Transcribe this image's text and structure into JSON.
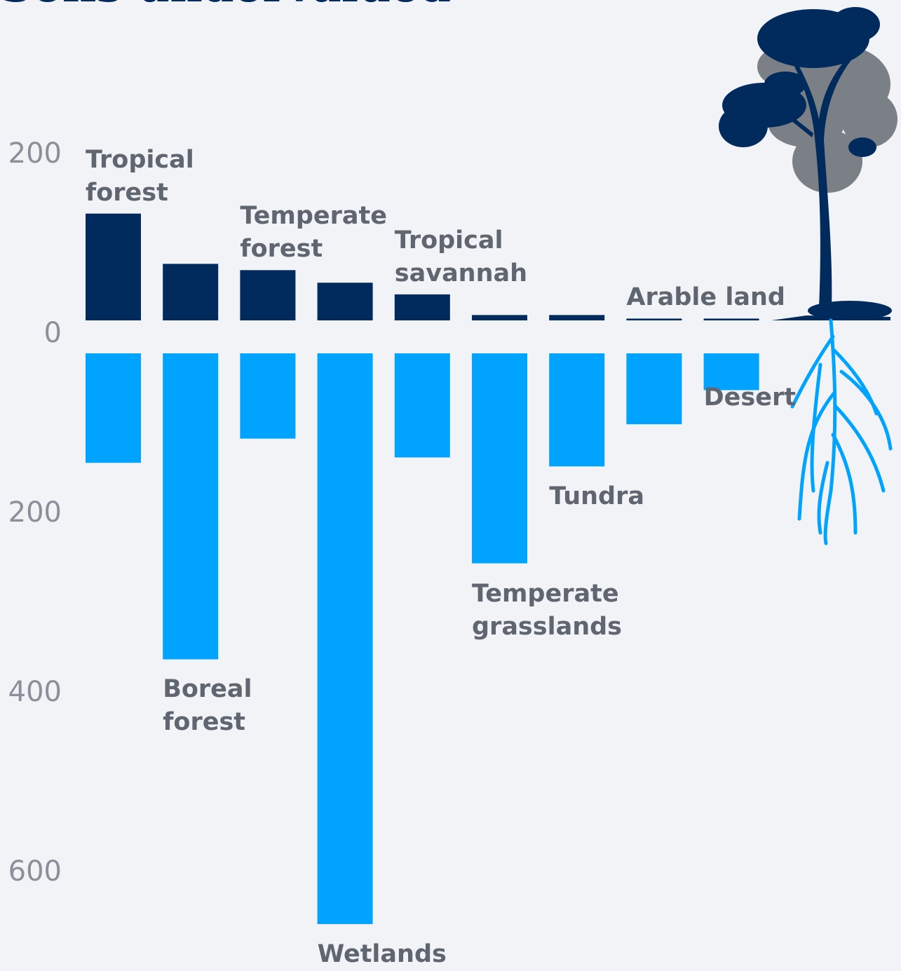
{
  "chart_data": {
    "type": "bar",
    "title": "Soils undervalued",
    "categories": [
      "Tropical forest",
      "Boreal forest",
      "Temperate forest",
      "Wetlands",
      "Tropical savannah",
      "Temperate grasslands",
      "Tundra",
      "Arable land",
      "Desert"
    ],
    "series": [
      {
        "color": "#002b5c",
        "values": [
          119,
          63,
          56,
          42,
          29,
          6,
          6,
          2,
          2
        ]
      },
      {
        "color": "#00a4ff",
        "values": [
          122,
          341,
          95,
          636,
          116,
          234,
          126,
          79,
          41
        ],
        "axis": "y2"
      }
    ],
    "ylim": [
      0,
      250
    ],
    "yticks": [
      0,
      200
    ],
    "y2lim": [
      0,
      700
    ],
    "y2ticks": [
      200,
      400,
      600
    ]
  }
}
